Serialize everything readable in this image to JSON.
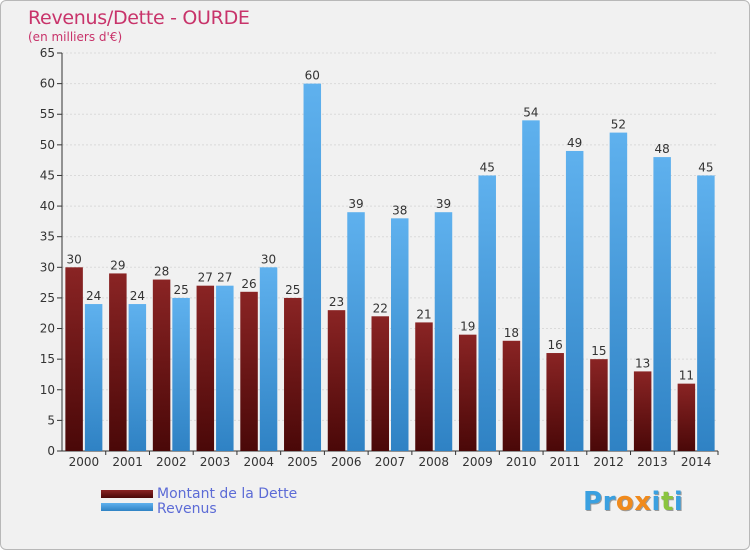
{
  "title": "Revenus/Dette - OURDE",
  "subtitle": "(en milliers d'€)",
  "legend": {
    "debt_label": "Montant de la Dette",
    "revenue_label": "Revenus"
  },
  "logo": {
    "text": "Proxiti",
    "letters": [
      "P",
      "r",
      "o",
      "x",
      "i",
      "t",
      "i"
    ],
    "colors": [
      "#3aa0e0",
      "#3aa0e0",
      "#f08a1c",
      "#f08a1c",
      "#3aa0e0",
      "#8bc53f",
      "#3aa0e0"
    ]
  },
  "colors": {
    "debt": "#7a1a1a",
    "revenue": "#4aa3e6",
    "title": "#c8336a",
    "legend_text": "#5c6bd6"
  },
  "chart_data": {
    "type": "bar",
    "categories": [
      "2000",
      "2001",
      "2002",
      "2003",
      "2004",
      "2005",
      "2006",
      "2007",
      "2008",
      "2009",
      "2010",
      "2011",
      "2012",
      "2013",
      "2014"
    ],
    "series": [
      {
        "name": "Montant de la Dette",
        "values": [
          30,
          29,
          28,
          27,
          26,
          25,
          23,
          22,
          21,
          19,
          18,
          16,
          15,
          13,
          11
        ]
      },
      {
        "name": "Revenus",
        "values": [
          24,
          24,
          25,
          27,
          30,
          60,
          39,
          38,
          39,
          45,
          54,
          49,
          52,
          48,
          45
        ]
      }
    ],
    "ylim": [
      0,
      65
    ],
    "yticks": [
      0,
      5,
      10,
      15,
      20,
      25,
      30,
      35,
      40,
      45,
      50,
      55,
      60,
      65
    ],
    "grid": true,
    "legend_position": "bottom-left"
  }
}
